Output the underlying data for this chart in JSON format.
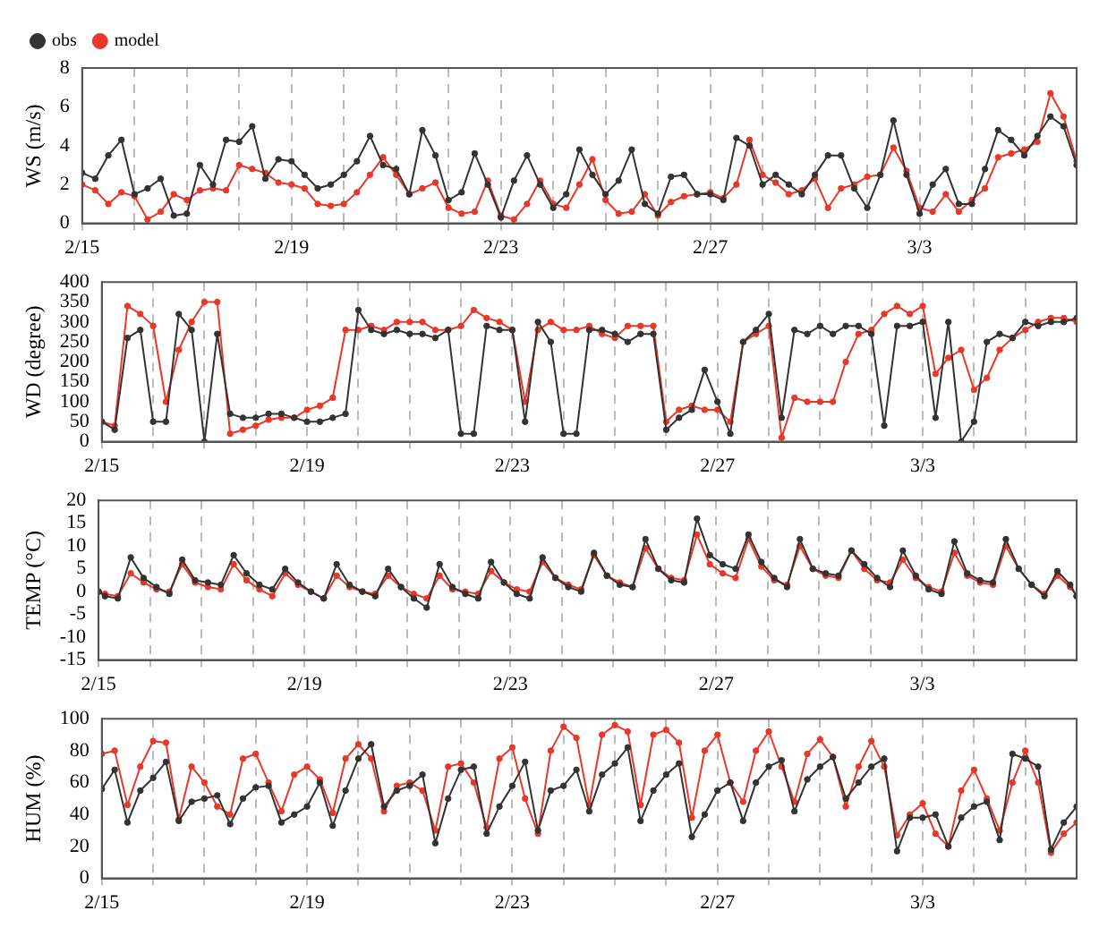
{
  "chart_data": [
    {
      "type": "line",
      "ylabel": "WS (m/s)",
      "legend": "top left",
      "grid": "x",
      "marker": "circle",
      "xlim": [
        "--02-15",
        "--03-06"
      ],
      "xticks": [
        {
          "value": "--02-15",
          "label": "2/15"
        },
        {
          "value": "--02-16",
          "label": null
        },
        {
          "value": "--02-17",
          "label": null
        },
        {
          "value": "--02-18",
          "label": null
        },
        {
          "value": "--02-19",
          "label": "2/19"
        },
        {
          "value": "--02-20",
          "label": null
        },
        {
          "value": "--02-21",
          "label": null
        },
        {
          "value": "--02-22",
          "label": null
        },
        {
          "value": "--02-23",
          "label": "2/23"
        },
        {
          "value": "--02-24",
          "label": null
        },
        {
          "value": "--02-25",
          "label": null
        },
        {
          "value": "--02-26",
          "label": null
        },
        {
          "value": "--02-27",
          "label": "2/27"
        },
        {
          "value": "--02-28",
          "label": null
        },
        {
          "value": "--03-01",
          "label": null
        },
        {
          "value": "--03-02",
          "label": null
        },
        {
          "value": "--03-03",
          "label": "3/3"
        },
        {
          "value": "--03-04",
          "label": null
        },
        {
          "value": "--03-05",
          "label": null
        }
      ],
      "ylim": [
        0,
        8
      ],
      "yticks": [
        0,
        2,
        4,
        6,
        8
      ],
      "x": [
        "--02-15T00:00",
        "--02-15T06:00",
        "--02-15T12:00",
        "--02-15T18:00",
        "--02-16T00:00",
        "--02-16T06:00",
        "--02-16T12:00",
        "--02-16T18:00",
        "--02-17T00:00",
        "--02-17T06:00",
        "--02-17T12:00",
        "--02-17T18:00",
        "--02-18T00:00",
        "--02-18T06:00",
        "--02-18T12:00",
        "--02-18T18:00",
        "--02-19T00:00",
        "--02-19T06:00",
        "--02-19T12:00",
        "--02-19T18:00",
        "--02-20T00:00",
        "--02-20T06:00",
        "--02-20T12:00",
        "--02-20T18:00",
        "--02-21T00:00",
        "--02-21T06:00",
        "--02-21T12:00",
        "--02-21T18:00",
        "--02-22T00:00",
        "--02-22T06:00",
        "--02-22T12:00",
        "--02-22T18:00",
        "--02-23T00:00",
        "--02-23T06:00",
        "--02-23T12:00",
        "--02-23T18:00",
        "--02-24T00:00",
        "--02-24T06:00",
        "--02-24T12:00",
        "--02-24T18:00",
        "--02-25T00:00",
        "--02-25T06:00",
        "--02-25T12:00",
        "--02-25T18:00",
        "--02-26T00:00",
        "--02-26T06:00",
        "--02-26T12:00",
        "--02-26T18:00",
        "--02-27T00:00",
        "--02-27T06:00",
        "--02-27T12:00",
        "--02-27T18:00",
        "--02-28T00:00",
        "--02-28T06:00",
        "--02-28T12:00",
        "--02-28T18:00",
        "--03-01T00:00",
        "--03-01T06:00",
        "--03-01T12:00",
        "--03-01T18:00",
        "--03-02T00:00",
        "--03-02T06:00",
        "--03-02T12:00",
        "--03-02T18:00",
        "--03-03T00:00",
        "--03-03T06:00",
        "--03-03T12:00",
        "--03-03T18:00",
        "--03-04T00:00",
        "--03-04T06:00",
        "--03-04T12:00",
        "--03-04T18:00",
        "--03-05T00:00",
        "--03-05T06:00",
        "--03-05T12:00",
        "--03-05T18:00",
        "--03-06T00:00"
      ],
      "series": [
        {
          "name": "obs",
          "color": "#333333",
          "values": [
            2.6,
            2.3,
            3.5,
            4.3,
            1.5,
            1.8,
            2.3,
            0.4,
            0.5,
            3.0,
            2.0,
            4.3,
            4.2,
            5.0,
            2.3,
            3.3,
            3.2,
            2.5,
            1.8,
            2.0,
            2.5,
            3.2,
            4.5,
            3.0,
            2.8,
            1.5,
            4.8,
            3.5,
            1.2,
            1.6,
            3.6,
            2.0,
            0.3,
            2.2,
            3.5,
            2.0,
            0.8,
            1.5,
            3.8,
            2.5,
            1.5,
            2.2,
            3.8,
            1.0,
            0.5,
            2.4,
            2.5,
            1.5,
            1.5,
            1.2,
            4.4,
            4.0,
            2.0,
            2.5,
            2.0,
            1.5,
            2.5,
            3.5,
            3.5,
            1.8,
            0.8,
            2.5,
            5.3,
            2.5,
            0.5,
            2.0,
            2.8,
            1.0,
            1.0,
            2.8,
            4.8,
            4.3,
            3.5,
            4.5,
            5.5,
            5.0,
            3.0
          ]
        },
        {
          "name": "model",
          "color": "#e8382a",
          "values": [
            2.0,
            1.7,
            1.0,
            1.6,
            1.4,
            0.2,
            0.6,
            1.5,
            1.2,
            1.7,
            1.8,
            1.7,
            3.0,
            2.8,
            2.6,
            2.1,
            2.0,
            1.8,
            1.0,
            0.9,
            1.0,
            1.6,
            2.5,
            3.4,
            2.5,
            1.5,
            1.8,
            2.1,
            0.8,
            0.5,
            0.6,
            2.2,
            0.4,
            0.2,
            1.0,
            2.2,
            1.0,
            0.8,
            2.0,
            3.3,
            1.2,
            0.5,
            0.6,
            1.5,
            0.4,
            1.1,
            1.4,
            1.5,
            1.6,
            1.3,
            2.0,
            4.3,
            2.5,
            2.1,
            1.5,
            1.7,
            2.3,
            0.8,
            1.8,
            2.0,
            2.4,
            2.5,
            3.9,
            2.7,
            0.8,
            0.6,
            1.5,
            0.6,
            1.2,
            1.8,
            3.4,
            3.6,
            3.8,
            4.2,
            6.7,
            5.5,
            3.2
          ]
        }
      ]
    },
    {
      "type": "line",
      "ylabel": "WD (degree)",
      "grid": "x",
      "marker": "circle",
      "xlim": [
        "--02-15",
        "--03-06"
      ],
      "xticks": [
        {
          "value": "--02-15",
          "label": "2/15"
        },
        {
          "value": "--02-16",
          "label": null
        },
        {
          "value": "--02-17",
          "label": null
        },
        {
          "value": "--02-18",
          "label": null
        },
        {
          "value": "--02-19",
          "label": "2/19"
        },
        {
          "value": "--02-20",
          "label": null
        },
        {
          "value": "--02-21",
          "label": null
        },
        {
          "value": "--02-22",
          "label": null
        },
        {
          "value": "--02-23",
          "label": "2/23"
        },
        {
          "value": "--02-24",
          "label": null
        },
        {
          "value": "--02-25",
          "label": null
        },
        {
          "value": "--02-26",
          "label": null
        },
        {
          "value": "--02-27",
          "label": "2/27"
        },
        {
          "value": "--02-28",
          "label": null
        },
        {
          "value": "--03-01",
          "label": null
        },
        {
          "value": "--03-02",
          "label": null
        },
        {
          "value": "--03-03",
          "label": "3/3"
        },
        {
          "value": "--03-04",
          "label": null
        },
        {
          "value": "--03-05",
          "label": null
        }
      ],
      "ylim": [
        0,
        400
      ],
      "yticks": [
        0,
        50,
        100,
        150,
        200,
        250,
        300,
        350,
        400
      ],
      "x": [
        "--02-15T00:00",
        "--02-15T06:00",
        "--02-15T12:00",
        "--02-15T18:00",
        "--02-16T00:00",
        "--02-16T06:00",
        "--02-16T12:00",
        "--02-16T18:00",
        "--02-17T00:00",
        "--02-17T06:00",
        "--02-17T12:00",
        "--02-17T18:00",
        "--02-18T00:00",
        "--02-18T06:00",
        "--02-18T12:00",
        "--02-18T18:00",
        "--02-19T00:00",
        "--02-19T06:00",
        "--02-19T12:00",
        "--02-19T18:00",
        "--02-20T00:00",
        "--02-20T06:00",
        "--02-20T12:00",
        "--02-20T18:00",
        "--02-21T00:00",
        "--02-21T06:00",
        "--02-21T12:00",
        "--02-21T18:00",
        "--02-22T00:00",
        "--02-22T06:00",
        "--02-22T12:00",
        "--02-22T18:00",
        "--02-23T00:00",
        "--02-23T06:00",
        "--02-23T12:00",
        "--02-23T18:00",
        "--02-24T00:00",
        "--02-24T06:00",
        "--02-24T12:00",
        "--02-24T18:00",
        "--02-25T00:00",
        "--02-25T06:00",
        "--02-25T12:00",
        "--02-25T18:00",
        "--02-26T00:00",
        "--02-26T06:00",
        "--02-26T12:00",
        "--02-26T18:00",
        "--02-27T00:00",
        "--02-27T06:00",
        "--02-27T12:00",
        "--02-27T18:00",
        "--02-28T00:00",
        "--02-28T06:00",
        "--02-28T12:00",
        "--02-28T18:00",
        "--03-01T00:00",
        "--03-01T06:00",
        "--03-01T12:00",
        "--03-01T18:00",
        "--03-02T00:00",
        "--03-02T06:00",
        "--03-02T12:00",
        "--03-02T18:00",
        "--03-03T00:00",
        "--03-03T06:00",
        "--03-03T12:00",
        "--03-03T18:00",
        "--03-04T00:00",
        "--03-04T06:00",
        "--03-04T12:00",
        "--03-04T18:00",
        "--03-05T00:00",
        "--03-05T06:00",
        "--03-05T12:00",
        "--03-05T18:00",
        "--03-06T00:00"
      ],
      "series": [
        {
          "color": "#333333",
          "values": [
            50,
            30,
            260,
            280,
            50,
            50,
            320,
            280,
            0,
            270,
            70,
            60,
            60,
            70,
            70,
            60,
            50,
            50,
            60,
            70,
            330,
            280,
            270,
            280,
            270,
            270,
            260,
            280,
            20,
            20,
            290,
            280,
            280,
            50,
            300,
            250,
            20,
            20,
            280,
            280,
            270,
            250,
            270,
            270,
            30,
            60,
            80,
            180,
            100,
            20,
            250,
            280,
            320,
            60,
            280,
            270,
            290,
            270,
            290,
            290,
            270,
            40,
            290,
            290,
            300,
            60,
            300,
            0,
            50,
            250,
            270,
            260,
            300,
            290,
            300,
            300,
            310
          ]
        },
        {
          "color": "#e8382a",
          "values": [
            50,
            40,
            340,
            320,
            290,
            100,
            230,
            300,
            350,
            350,
            20,
            30,
            40,
            55,
            60,
            60,
            80,
            90,
            110,
            280,
            280,
            290,
            280,
            300,
            300,
            300,
            280,
            280,
            290,
            330,
            310,
            300,
            280,
            100,
            280,
            300,
            280,
            280,
            290,
            270,
            260,
            290,
            290,
            290,
            50,
            80,
            90,
            80,
            80,
            50,
            250,
            270,
            290,
            10,
            110,
            100,
            100,
            100,
            200,
            270,
            280,
            320,
            340,
            320,
            340,
            170,
            210,
            230,
            130,
            160,
            230,
            260,
            280,
            300,
            310,
            310,
            300
          ]
        }
      ]
    },
    {
      "type": "line",
      "ylabel": "TEMP (°C)",
      "grid": "x",
      "marker": "circle",
      "xlim": [
        "--02-15",
        "--03-06"
      ],
      "xticks": [
        {
          "value": "--02-15",
          "label": "2/15"
        },
        {
          "value": "--02-16",
          "label": null
        },
        {
          "value": "--02-17",
          "label": null
        },
        {
          "value": "--02-18",
          "label": null
        },
        {
          "value": "--02-19",
          "label": "2/19"
        },
        {
          "value": "--02-20",
          "label": null
        },
        {
          "value": "--02-21",
          "label": null
        },
        {
          "value": "--02-22",
          "label": null
        },
        {
          "value": "--02-23",
          "label": "2/23"
        },
        {
          "value": "--02-24",
          "label": null
        },
        {
          "value": "--02-25",
          "label": null
        },
        {
          "value": "--02-26",
          "label": null
        },
        {
          "value": "--02-27",
          "label": "2/27"
        },
        {
          "value": "--02-28",
          "label": null
        },
        {
          "value": "--03-01",
          "label": null
        },
        {
          "value": "--03-02",
          "label": null
        },
        {
          "value": "--03-03",
          "label": "3/3"
        },
        {
          "value": "--03-04",
          "label": null
        },
        {
          "value": "--03-05",
          "label": null
        }
      ],
      "ylim": [
        -15,
        20
      ],
      "yticks": [
        -15,
        -10,
        -5,
        0,
        5,
        10,
        15,
        20
      ],
      "x": [
        "--02-15T00:00",
        "--02-15T03:00",
        "--02-15T09:00",
        "--02-15T15:00",
        "--02-15T21:00",
        "--02-16T03:00",
        "--02-16T09:00",
        "--02-16T15:00",
        "--02-16T21:00",
        "--02-17T03:00",
        "--02-17T09:00",
        "--02-17T15:00",
        "--02-17T21:00",
        "--02-18T03:00",
        "--02-18T09:00",
        "--02-18T15:00",
        "--02-18T21:00",
        "--02-19T03:00",
        "--02-19T09:00",
        "--02-19T15:00",
        "--02-19T21:00",
        "--02-20T03:00",
        "--02-20T09:00",
        "--02-20T15:00",
        "--02-20T21:00",
        "--02-21T03:00",
        "--02-21T09:00",
        "--02-21T15:00",
        "--02-21T21:00",
        "--02-22T03:00",
        "--02-22T09:00",
        "--02-22T15:00",
        "--02-22T21:00",
        "--02-23T03:00",
        "--02-23T09:00",
        "--02-23T15:00",
        "--02-23T21:00",
        "--02-24T03:00",
        "--02-24T09:00",
        "--02-24T15:00",
        "--02-24T21:00",
        "--02-25T03:00",
        "--02-25T09:00",
        "--02-25T15:00",
        "--02-25T21:00",
        "--02-26T03:00",
        "--02-26T09:00",
        "--02-26T15:00",
        "--02-26T21:00",
        "--02-27T03:00",
        "--02-27T09:00",
        "--02-27T15:00",
        "--02-27T21:00",
        "--02-28T03:00",
        "--02-28T09:00",
        "--02-28T15:00",
        "--02-28T21:00",
        "--03-01T03:00",
        "--03-01T09:00",
        "--03-01T15:00",
        "--03-01T21:00",
        "--03-02T03:00",
        "--03-02T09:00",
        "--03-02T15:00",
        "--03-02T21:00",
        "--03-03T03:00",
        "--03-03T09:00",
        "--03-03T15:00",
        "--03-03T21:00",
        "--03-04T03:00",
        "--03-04T09:00",
        "--03-04T15:00",
        "--03-04T21:00",
        "--03-05T03:00",
        "--03-05T09:00",
        "--03-05T15:00",
        "--03-05T21:00",
        "--03-06T00:00"
      ],
      "series": [
        {
          "color": "#333333",
          "values": [
            0,
            -1,
            -1.5,
            7.5,
            3,
            1,
            -0.5,
            7,
            2.5,
            2,
            1.5,
            8,
            4,
            1.5,
            0.5,
            5,
            2,
            0,
            -1.5,
            6,
            1.5,
            0,
            -1,
            5,
            1,
            -1.5,
            -3.5,
            6,
            1,
            -0.5,
            -1.5,
            6.5,
            2,
            -0.5,
            -1.5,
            7.5,
            3,
            1,
            0,
            8.5,
            3.5,
            1.5,
            1,
            11.5,
            5,
            2.5,
            2,
            16,
            8,
            6,
            5,
            12.5,
            6.5,
            3,
            1,
            11.5,
            5,
            4,
            3.5,
            9,
            6,
            3,
            1,
            9,
            3.5,
            0.5,
            -0.5,
            11,
            4,
            2.5,
            2,
            11.5,
            5,
            1.5,
            -1,
            4.5,
            1.5,
            -1
          ]
        },
        {
          "color": "#e8382a",
          "values": [
            0,
            -0.5,
            -1,
            4,
            2,
            0.5,
            0,
            6,
            2,
            1,
            0.5,
            6,
            2.5,
            0.5,
            -1,
            4,
            1.5,
            0,
            -1.5,
            3.5,
            1,
            0,
            -0.5,
            3.5,
            1,
            -0.5,
            -1.5,
            3.5,
            0.5,
            0,
            -0.5,
            4.5,
            2,
            0.5,
            0,
            6.5,
            3,
            1.5,
            0.5,
            8,
            3.5,
            2,
            1,
            9.5,
            5,
            3,
            2.5,
            12.5,
            6,
            4,
            3,
            11.5,
            5.5,
            2.5,
            1.5,
            10,
            5,
            3.5,
            3,
            9,
            5,
            2.5,
            2,
            7,
            3,
            1,
            0,
            8.5,
            3.5,
            2,
            1.5,
            10,
            5,
            1.5,
            -0.5,
            3.5,
            1,
            -1
          ]
        }
      ]
    },
    {
      "type": "line",
      "ylabel": "HUM (%)",
      "grid": "x",
      "marker": "circle",
      "xlim": [
        "--02-15",
        "--03-06"
      ],
      "xticks": [
        {
          "value": "--02-15",
          "label": "2/15"
        },
        {
          "value": "--02-16",
          "label": null
        },
        {
          "value": "--02-17",
          "label": null
        },
        {
          "value": "--02-18",
          "label": null
        },
        {
          "value": "--02-19",
          "label": "2/19"
        },
        {
          "value": "--02-20",
          "label": null
        },
        {
          "value": "--02-21",
          "label": null
        },
        {
          "value": "--02-22",
          "label": null
        },
        {
          "value": "--02-23",
          "label": "2/23"
        },
        {
          "value": "--02-24",
          "label": null
        },
        {
          "value": "--02-25",
          "label": null
        },
        {
          "value": "--02-26",
          "label": null
        },
        {
          "value": "--02-27",
          "label": "2/27"
        },
        {
          "value": "--02-28",
          "label": null
        },
        {
          "value": "--03-01",
          "label": null
        },
        {
          "value": "--03-02",
          "label": null
        },
        {
          "value": "--03-03",
          "label": "3/3"
        },
        {
          "value": "--03-04",
          "label": null
        },
        {
          "value": "--03-05",
          "label": null
        }
      ],
      "ylim": [
        0,
        100
      ],
      "yticks": [
        0,
        20,
        40,
        60,
        80,
        100
      ],
      "x": [
        "--02-15T00:00",
        "--02-15T06:00",
        "--02-15T12:00",
        "--02-15T18:00",
        "--02-16T00:00",
        "--02-16T06:00",
        "--02-16T12:00",
        "--02-16T18:00",
        "--02-17T00:00",
        "--02-17T06:00",
        "--02-17T12:00",
        "--02-17T18:00",
        "--02-18T00:00",
        "--02-18T06:00",
        "--02-18T12:00",
        "--02-18T18:00",
        "--02-19T00:00",
        "--02-19T06:00",
        "--02-19T12:00",
        "--02-19T18:00",
        "--02-20T00:00",
        "--02-20T06:00",
        "--02-20T12:00",
        "--02-20T18:00",
        "--02-21T00:00",
        "--02-21T06:00",
        "--02-21T12:00",
        "--02-21T18:00",
        "--02-22T00:00",
        "--02-22T06:00",
        "--02-22T12:00",
        "--02-22T18:00",
        "--02-23T00:00",
        "--02-23T06:00",
        "--02-23T12:00",
        "--02-23T18:00",
        "--02-24T00:00",
        "--02-24T06:00",
        "--02-24T12:00",
        "--02-24T18:00",
        "--02-25T00:00",
        "--02-25T06:00",
        "--02-25T12:00",
        "--02-25T18:00",
        "--02-26T00:00",
        "--02-26T06:00",
        "--02-26T12:00",
        "--02-26T18:00",
        "--02-27T00:00",
        "--02-27T06:00",
        "--02-27T12:00",
        "--02-27T18:00",
        "--02-28T00:00",
        "--02-28T06:00",
        "--02-28T12:00",
        "--02-28T18:00",
        "--03-01T00:00",
        "--03-01T06:00",
        "--03-01T12:00",
        "--03-01T18:00",
        "--03-02T00:00",
        "--03-02T06:00",
        "--03-02T12:00",
        "--03-02T18:00",
        "--03-03T00:00",
        "--03-03T06:00",
        "--03-03T12:00",
        "--03-03T18:00",
        "--03-04T00:00",
        "--03-04T06:00",
        "--03-04T12:00",
        "--03-04T18:00",
        "--03-05T00:00",
        "--03-05T06:00",
        "--03-05T12:00",
        "--03-05T18:00",
        "--03-06T00:00"
      ],
      "series": [
        {
          "color": "#333333",
          "values": [
            56,
            68,
            35,
            55,
            63,
            73,
            36,
            48,
            50,
            52,
            34,
            50,
            57,
            58,
            35,
            40,
            45,
            60,
            33,
            55,
            75,
            84,
            45,
            55,
            58,
            65,
            22,
            50,
            68,
            70,
            28,
            45,
            58,
            73,
            30,
            55,
            58,
            68,
            42,
            65,
            72,
            82,
            36,
            55,
            65,
            72,
            26,
            40,
            55,
            60,
            36,
            60,
            70,
            74,
            42,
            62,
            70,
            76,
            50,
            60,
            70,
            75,
            17,
            38,
            38,
            40,
            20,
            38,
            45,
            48,
            24,
            78,
            75,
            70,
            18,
            35,
            45
          ]
        },
        {
          "color": "#e8382a",
          "values": [
            78,
            80,
            46,
            70,
            86,
            85,
            37,
            70,
            60,
            45,
            40,
            75,
            78,
            60,
            42,
            65,
            70,
            62,
            41,
            75,
            84,
            75,
            42,
            58,
            60,
            55,
            30,
            70,
            72,
            60,
            32,
            75,
            82,
            50,
            28,
            80,
            95,
            88,
            46,
            90,
            96,
            92,
            46,
            90,
            93,
            85,
            38,
            80,
            90,
            60,
            48,
            80,
            92,
            70,
            48,
            78,
            87,
            76,
            45,
            70,
            86,
            70,
            27,
            40,
            47,
            28,
            20,
            55,
            68,
            50,
            30,
            60,
            80,
            60,
            16,
            28,
            35
          ]
        }
      ]
    }
  ]
}
